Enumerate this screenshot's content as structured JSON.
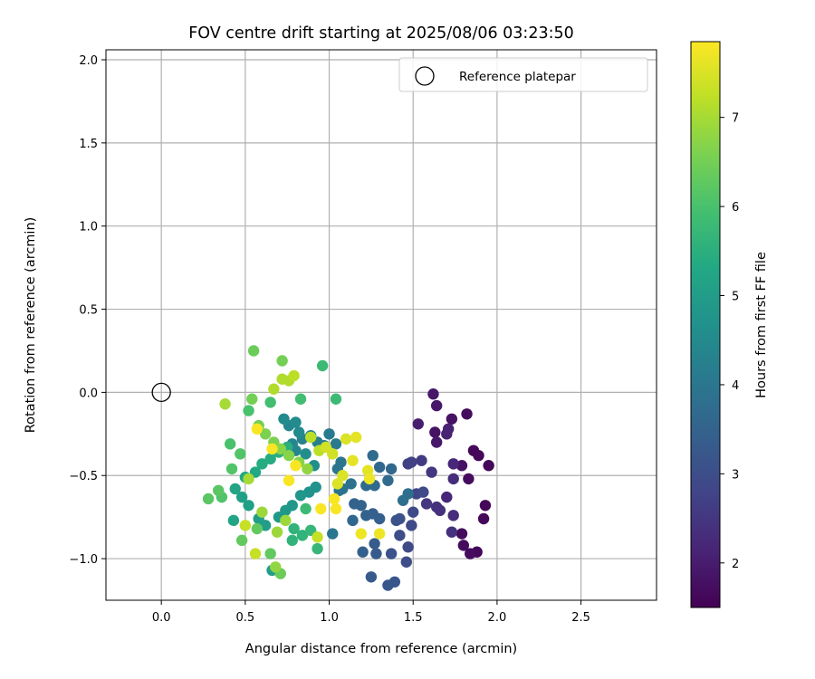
{
  "chart_data": {
    "type": "scatter",
    "title": "FOV centre drift starting at 2025/08/06 03:23:50",
    "xlabel": "Angular distance from reference (arcmin)",
    "ylabel": "Rotation from reference (arcmin)",
    "xlim": [
      -0.33,
      2.95
    ],
    "ylim": [
      -1.25,
      2.06
    ],
    "xticks": [
      0.0,
      0.5,
      1.0,
      1.5,
      2.0,
      2.5
    ],
    "xtick_labels": [
      "0.0",
      "0.5",
      "1.0",
      "1.5",
      "2.0",
      "2.5"
    ],
    "yticks": [
      -1.0,
      -0.5,
      0.0,
      0.5,
      1.0,
      1.5,
      2.0
    ],
    "ytick_labels": [
      "−1.0",
      "−0.5",
      "0.0",
      "0.5",
      "1.0",
      "1.5",
      "2.0"
    ],
    "grid": true,
    "legend": {
      "placement": "top-right",
      "entries": [
        "Reference platepar"
      ]
    },
    "reference_point": {
      "x": 0.0,
      "y": 0.0,
      "label": "Reference platepar"
    },
    "colorbar": {
      "label": "Hours from first FF file",
      "colormap": "viridis",
      "range": [
        1.5,
        7.85
      ],
      "ticks": [
        2,
        3,
        4,
        5,
        6,
        7
      ],
      "tick_labels": [
        "2",
        "3",
        "4",
        "5",
        "6",
        "7"
      ]
    },
    "series": [
      {
        "points": [
          {
            "x": 1.86,
            "y": -0.35,
            "c": 1.6
          },
          {
            "x": 1.89,
            "y": -0.38,
            "c": 1.6
          },
          {
            "x": 1.95,
            "y": -0.44,
            "c": 1.6
          },
          {
            "x": 1.93,
            "y": -0.68,
            "c": 1.6
          },
          {
            "x": 1.92,
            "y": -0.76,
            "c": 1.6
          },
          {
            "x": 1.88,
            "y": -0.96,
            "c": 1.6
          },
          {
            "x": 1.84,
            "y": -0.97,
            "c": 1.7
          },
          {
            "x": 1.8,
            "y": -0.92,
            "c": 1.7
          },
          {
            "x": 1.79,
            "y": -0.85,
            "c": 1.7
          },
          {
            "x": 1.83,
            "y": -0.52,
            "c": 1.7
          },
          {
            "x": 1.79,
            "y": -0.44,
            "c": 1.8
          },
          {
            "x": 1.82,
            "y": -0.13,
            "c": 1.7
          },
          {
            "x": 1.73,
            "y": -0.16,
            "c": 1.8
          },
          {
            "x": 1.63,
            "y": -0.24,
            "c": 1.8
          },
          {
            "x": 1.62,
            "y": -0.01,
            "c": 1.9
          },
          {
            "x": 1.64,
            "y": -0.08,
            "c": 1.9
          },
          {
            "x": 1.64,
            "y": -0.3,
            "c": 1.9
          },
          {
            "x": 1.53,
            "y": -0.19,
            "c": 2.0
          },
          {
            "x": 1.71,
            "y": -0.22,
            "c": 2.1
          },
          {
            "x": 1.7,
            "y": -0.25,
            "c": 2.1
          },
          {
            "x": 1.74,
            "y": -0.43,
            "c": 2.2
          },
          {
            "x": 1.74,
            "y": -0.52,
            "c": 2.3
          },
          {
            "x": 1.7,
            "y": -0.63,
            "c": 2.2
          },
          {
            "x": 1.74,
            "y": -0.74,
            "c": 2.3
          },
          {
            "x": 1.73,
            "y": -0.84,
            "c": 2.4
          },
          {
            "x": 1.64,
            "y": -0.69,
            "c": 2.4
          },
          {
            "x": 1.66,
            "y": -0.71,
            "c": 2.4
          },
          {
            "x": 1.58,
            "y": -0.67,
            "c": 2.5
          },
          {
            "x": 1.61,
            "y": -0.48,
            "c": 2.5
          },
          {
            "x": 1.55,
            "y": -0.41,
            "c": 2.6
          },
          {
            "x": 1.49,
            "y": -0.42,
            "c": 2.7
          },
          {
            "x": 1.47,
            "y": -0.43,
            "c": 2.7
          },
          {
            "x": 1.52,
            "y": -0.61,
            "c": 2.8
          },
          {
            "x": 1.56,
            "y": -0.6,
            "c": 2.9
          },
          {
            "x": 1.5,
            "y": -0.72,
            "c": 2.9
          },
          {
            "x": 1.49,
            "y": -0.8,
            "c": 2.9
          },
          {
            "x": 1.47,
            "y": -0.93,
            "c": 2.9
          },
          {
            "x": 1.46,
            "y": -1.02,
            "c": 3.0
          },
          {
            "x": 1.42,
            "y": -0.86,
            "c": 3.0
          },
          {
            "x": 1.4,
            "y": -0.77,
            "c": 3.1
          },
          {
            "x": 1.42,
            "y": -0.76,
            "c": 3.1
          },
          {
            "x": 1.37,
            "y": -0.97,
            "c": 3.1
          },
          {
            "x": 1.35,
            "y": -1.16,
            "c": 3.2
          },
          {
            "x": 1.39,
            "y": -1.14,
            "c": 3.2
          },
          {
            "x": 1.25,
            "y": -1.11,
            "c": 3.3
          },
          {
            "x": 1.28,
            "y": -0.97,
            "c": 3.3
          },
          {
            "x": 1.27,
            "y": -0.91,
            "c": 3.3
          },
          {
            "x": 1.2,
            "y": -0.96,
            "c": 3.4
          },
          {
            "x": 1.3,
            "y": -0.76,
            "c": 3.4
          },
          {
            "x": 1.26,
            "y": -0.73,
            "c": 3.4
          },
          {
            "x": 1.22,
            "y": -0.74,
            "c": 3.5
          },
          {
            "x": 1.19,
            "y": -0.68,
            "c": 3.5
          },
          {
            "x": 1.15,
            "y": -0.67,
            "c": 3.5
          },
          {
            "x": 1.14,
            "y": -0.77,
            "c": 3.6
          },
          {
            "x": 1.37,
            "y": -0.46,
            "c": 3.6
          },
          {
            "x": 1.3,
            "y": -0.45,
            "c": 3.6
          },
          {
            "x": 1.26,
            "y": -0.38,
            "c": 3.7
          },
          {
            "x": 1.22,
            "y": -0.56,
            "c": 3.7
          },
          {
            "x": 1.27,
            "y": -0.56,
            "c": 3.7
          },
          {
            "x": 1.35,
            "y": -0.53,
            "c": 3.7
          },
          {
            "x": 1.47,
            "y": -0.61,
            "c": 3.8
          },
          {
            "x": 1.44,
            "y": -0.65,
            "c": 3.8
          },
          {
            "x": 1.13,
            "y": -0.55,
            "c": 3.9
          },
          {
            "x": 1.08,
            "y": -0.58,
            "c": 3.9
          },
          {
            "x": 1.06,
            "y": -0.59,
            "c": 3.9
          },
          {
            "x": 1.02,
            "y": -0.85,
            "c": 4.0
          },
          {
            "x": 1.07,
            "y": -0.42,
            "c": 4.0
          },
          {
            "x": 1.05,
            "y": -0.46,
            "c": 4.0
          },
          {
            "x": 1.04,
            "y": -0.31,
            "c": 4.1
          },
          {
            "x": 1.0,
            "y": -0.25,
            "c": 4.1
          },
          {
            "x": 0.97,
            "y": -0.32,
            "c": 4.2
          },
          {
            "x": 0.93,
            "y": -0.3,
            "c": 4.2
          },
          {
            "x": 0.89,
            "y": -0.26,
            "c": 4.3
          },
          {
            "x": 0.84,
            "y": -0.28,
            "c": 4.3
          },
          {
            "x": 0.8,
            "y": -0.35,
            "c": 4.4
          },
          {
            "x": 0.78,
            "y": -0.31,
            "c": 4.4
          },
          {
            "x": 0.76,
            "y": -0.2,
            "c": 4.4
          },
          {
            "x": 0.73,
            "y": -0.16,
            "c": 4.5
          },
          {
            "x": 0.8,
            "y": -0.18,
            "c": 4.5
          },
          {
            "x": 0.82,
            "y": -0.24,
            "c": 4.5
          },
          {
            "x": 0.86,
            "y": -0.37,
            "c": 4.6
          },
          {
            "x": 0.91,
            "y": -0.44,
            "c": 4.6
          },
          {
            "x": 0.92,
            "y": -0.57,
            "c": 4.7
          },
          {
            "x": 0.88,
            "y": -0.6,
            "c": 4.7
          },
          {
            "x": 0.83,
            "y": -0.62,
            "c": 4.8
          },
          {
            "x": 0.78,
            "y": -0.68,
            "c": 4.8
          },
          {
            "x": 0.74,
            "y": -0.71,
            "c": 4.9
          },
          {
            "x": 0.7,
            "y": -0.75,
            "c": 4.9
          },
          {
            "x": 0.66,
            "y": -1.07,
            "c": 5.0
          },
          {
            "x": 0.62,
            "y": -0.8,
            "c": 5.0
          },
          {
            "x": 0.58,
            "y": -0.76,
            "c": 5.0
          },
          {
            "x": 0.52,
            "y": -0.68,
            "c": 5.1
          },
          {
            "x": 0.48,
            "y": -0.63,
            "c": 5.1
          },
          {
            "x": 0.44,
            "y": -0.58,
            "c": 5.2
          },
          {
            "x": 0.43,
            "y": -0.77,
            "c": 5.2
          },
          {
            "x": 0.5,
            "y": -0.51,
            "c": 5.3
          },
          {
            "x": 0.56,
            "y": -0.48,
            "c": 5.3
          },
          {
            "x": 0.6,
            "y": -0.43,
            "c": 5.4
          },
          {
            "x": 0.65,
            "y": -0.4,
            "c": 5.4
          },
          {
            "x": 0.7,
            "y": -0.36,
            "c": 5.5
          },
          {
            "x": 0.75,
            "y": -0.33,
            "c": 5.5
          },
          {
            "x": 0.79,
            "y": -0.82,
            "c": 5.6
          },
          {
            "x": 0.78,
            "y": -0.89,
            "c": 5.6
          },
          {
            "x": 0.84,
            "y": -0.86,
            "c": 5.6
          },
          {
            "x": 0.93,
            "y": -0.94,
            "c": 5.7
          },
          {
            "x": 0.89,
            "y": -0.83,
            "c": 5.7
          },
          {
            "x": 0.86,
            "y": -0.7,
            "c": 5.8
          },
          {
            "x": 0.96,
            "y": 0.16,
            "c": 5.8
          },
          {
            "x": 1.04,
            "y": -0.04,
            "c": 5.8
          },
          {
            "x": 0.83,
            "y": -0.04,
            "c": 5.9
          },
          {
            "x": 0.65,
            "y": -0.06,
            "c": 5.9
          },
          {
            "x": 0.52,
            "y": -0.11,
            "c": 6.0
          },
          {
            "x": 0.41,
            "y": -0.31,
            "c": 6.0
          },
          {
            "x": 0.47,
            "y": -0.37,
            "c": 6.1
          },
          {
            "x": 0.42,
            "y": -0.46,
            "c": 6.1
          },
          {
            "x": 0.36,
            "y": -0.63,
            "c": 6.1
          },
          {
            "x": 0.28,
            "y": -0.64,
            "c": 6.2
          },
          {
            "x": 0.34,
            "y": -0.59,
            "c": 6.2
          },
          {
            "x": 0.48,
            "y": -0.89,
            "c": 6.3
          },
          {
            "x": 0.57,
            "y": -0.82,
            "c": 6.3
          },
          {
            "x": 0.65,
            "y": -0.97,
            "c": 6.3
          },
          {
            "x": 0.71,
            "y": -1.09,
            "c": 6.4
          },
          {
            "x": 0.55,
            "y": 0.25,
            "c": 6.4
          },
          {
            "x": 0.72,
            "y": 0.19,
            "c": 6.5
          },
          {
            "x": 0.54,
            "y": -0.04,
            "c": 6.5
          },
          {
            "x": 0.58,
            "y": -0.2,
            "c": 6.5
          },
          {
            "x": 0.62,
            "y": -0.25,
            "c": 6.6
          },
          {
            "x": 0.67,
            "y": -0.3,
            "c": 6.6
          },
          {
            "x": 0.71,
            "y": -0.34,
            "c": 6.7
          },
          {
            "x": 0.76,
            "y": -0.38,
            "c": 6.7
          },
          {
            "x": 0.82,
            "y": -0.42,
            "c": 6.7
          },
          {
            "x": 0.87,
            "y": -0.46,
            "c": 6.8
          },
          {
            "x": 0.68,
            "y": -1.05,
            "c": 6.8
          },
          {
            "x": 0.74,
            "y": -0.77,
            "c": 6.9
          },
          {
            "x": 0.69,
            "y": -0.84,
            "c": 6.9
          },
          {
            "x": 0.6,
            "y": -0.72,
            "c": 6.9
          },
          {
            "x": 0.52,
            "y": -0.52,
            "c": 7.0
          },
          {
            "x": 0.38,
            "y": -0.07,
            "c": 7.0
          },
          {
            "x": 0.72,
            "y": 0.08,
            "c": 7.1
          },
          {
            "x": 0.76,
            "y": 0.07,
            "c": 7.1
          },
          {
            "x": 0.67,
            "y": 0.02,
            "c": 7.1
          },
          {
            "x": 0.79,
            "y": 0.1,
            "c": 7.2
          },
          {
            "x": 0.89,
            "y": -0.27,
            "c": 7.2
          },
          {
            "x": 0.94,
            "y": -0.35,
            "c": 7.2
          },
          {
            "x": 0.56,
            "y": -0.97,
            "c": 7.3
          },
          {
            "x": 0.5,
            "y": -0.8,
            "c": 7.3
          },
          {
            "x": 0.93,
            "y": -0.87,
            "c": 7.3
          },
          {
            "x": 0.98,
            "y": -0.33,
            "c": 7.4
          },
          {
            "x": 1.02,
            "y": -0.37,
            "c": 7.4
          },
          {
            "x": 1.05,
            "y": -0.55,
            "c": 7.5
          },
          {
            "x": 1.08,
            "y": -0.5,
            "c": 7.5
          },
          {
            "x": 1.1,
            "y": -0.28,
            "c": 7.5
          },
          {
            "x": 1.14,
            "y": -0.41,
            "c": 7.6
          },
          {
            "x": 1.16,
            "y": -0.27,
            "c": 7.6
          },
          {
            "x": 1.23,
            "y": -0.47,
            "c": 7.6
          },
          {
            "x": 1.24,
            "y": -0.52,
            "c": 7.7
          },
          {
            "x": 1.19,
            "y": -0.85,
            "c": 7.7
          },
          {
            "x": 1.3,
            "y": -0.85,
            "c": 7.7
          },
          {
            "x": 0.95,
            "y": -0.7,
            "c": 7.8
          },
          {
            "x": 1.04,
            "y": -0.7,
            "c": 7.8
          },
          {
            "x": 1.03,
            "y": -0.64,
            "c": 7.8
          },
          {
            "x": 0.8,
            "y": -0.44,
            "c": 7.8
          },
          {
            "x": 0.76,
            "y": -0.53,
            "c": 7.8
          },
          {
            "x": 0.66,
            "y": -0.34,
            "c": 7.8
          },
          {
            "x": 0.57,
            "y": -0.22,
            "c": 7.8
          }
        ]
      }
    ]
  }
}
